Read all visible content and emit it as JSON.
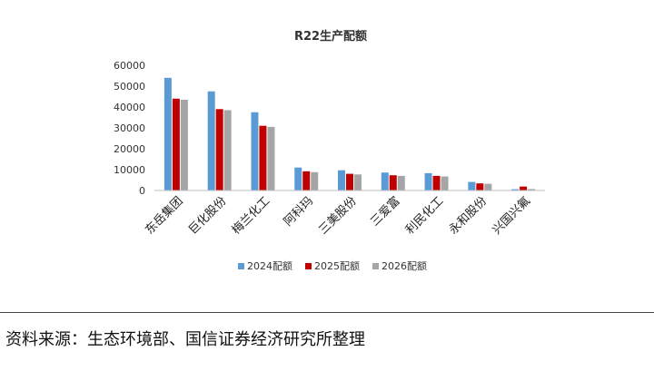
{
  "chart_data": {
    "type": "bar",
    "title": "R22生产配额",
    "categories": [
      "东岳集团",
      "巨化股份",
      "梅兰化工",
      "阿科玛",
      "三美股份",
      "三爱富",
      "利民化工",
      "永和股份",
      "兴国兴氟"
    ],
    "series": [
      {
        "name": "2024配额",
        "color": "#5B9BD5",
        "values": [
          54000,
          47500,
          37500,
          11000,
          9700,
          8600,
          8300,
          4100,
          600
        ]
      },
      {
        "name": "2025配额",
        "color": "#C00000",
        "values": [
          44000,
          39000,
          31000,
          9200,
          8000,
          7300,
          7000,
          3400,
          1900
        ]
      },
      {
        "name": "2026配额",
        "color": "#A5A5A5",
        "values": [
          43500,
          38500,
          30500,
          8800,
          7700,
          7000,
          6700,
          3200,
          700
        ]
      }
    ],
    "yticks": [
      "60000",
      "50000",
      "40000",
      "30000",
      "20000",
      "10000",
      "0"
    ],
    "ylim": [
      0,
      60000
    ],
    "xlabel": "",
    "ylabel": "",
    "legend_position": "bottom"
  },
  "source": "资料来源：生态环境部、国信证券经济研究所整理"
}
